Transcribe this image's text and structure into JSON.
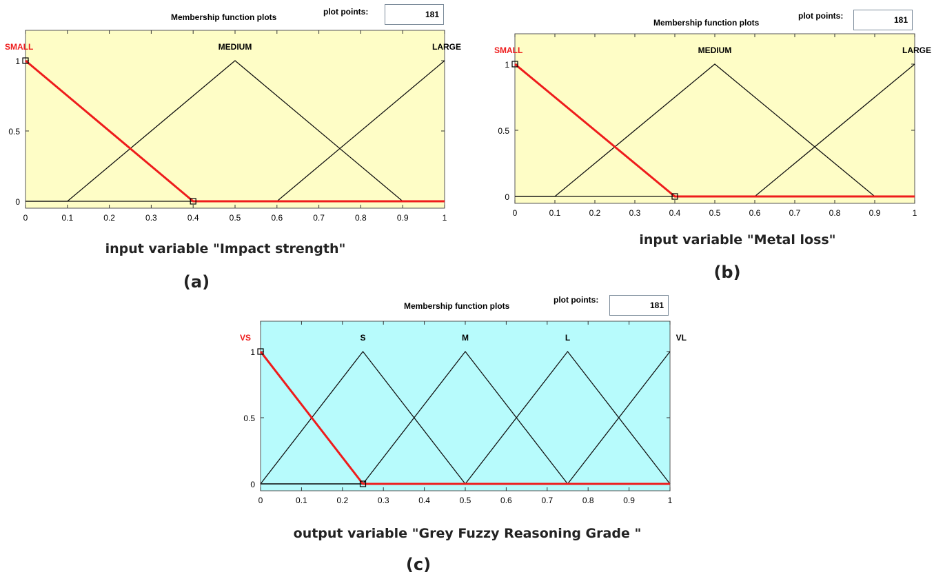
{
  "chart_data": [
    {
      "type": "line",
      "header": "Membership function plots",
      "plot_points_label": "plot points:",
      "plot_points_value": "181",
      "xlabel": "input variable \"Impact strength\"",
      "panel_label": "(a)",
      "background": "#fefdc6",
      "highlight_color": "#ee1c1c",
      "xlim": [
        0,
        1
      ],
      "ylim": [
        0,
        1
      ],
      "xticks": [
        "0",
        "0.1",
        "0.2",
        "0.3",
        "0.4",
        "0.5",
        "0.6",
        "0.7",
        "0.8",
        "0.9",
        "1"
      ],
      "yticks": [
        "0",
        "0.5",
        "1"
      ],
      "series": [
        {
          "name": "SMALL",
          "highlighted": true,
          "points": [
            [
              0,
              1
            ],
            [
              0.4,
              0
            ],
            [
              1,
              0
            ]
          ]
        },
        {
          "name": "MEDIUM",
          "highlighted": false,
          "points": [
            [
              0,
              0
            ],
            [
              0.1,
              0
            ],
            [
              0.5,
              1
            ],
            [
              0.9,
              0
            ],
            [
              1,
              0
            ]
          ]
        },
        {
          "name": "LARGE",
          "highlighted": false,
          "points": [
            [
              0,
              0
            ],
            [
              0.6,
              0
            ],
            [
              1,
              1
            ]
          ]
        }
      ]
    },
    {
      "type": "line",
      "header": "Membership function plots",
      "plot_points_label": "plot points:",
      "plot_points_value": "181",
      "xlabel": "input variable \"Metal loss\"",
      "panel_label": "(b)",
      "background": "#fefdc6",
      "highlight_color": "#ee1c1c",
      "xlim": [
        0,
        1
      ],
      "ylim": [
        0,
        1
      ],
      "xticks": [
        "0",
        "0.1",
        "0.2",
        "0.3",
        "0.4",
        "0.5",
        "0.6",
        "0.7",
        "0.8",
        "0.9",
        "1"
      ],
      "yticks": [
        "0",
        "0.5",
        "1"
      ],
      "series": [
        {
          "name": "SMALL",
          "highlighted": true,
          "points": [
            [
              0,
              1
            ],
            [
              0.4,
              0
            ],
            [
              1,
              0
            ]
          ]
        },
        {
          "name": "MEDIUM",
          "highlighted": false,
          "points": [
            [
              0,
              0
            ],
            [
              0.1,
              0
            ],
            [
              0.5,
              1
            ],
            [
              0.9,
              0
            ],
            [
              1,
              0
            ]
          ]
        },
        {
          "name": "LARGE",
          "highlighted": false,
          "points": [
            [
              0,
              0
            ],
            [
              0.6,
              0
            ],
            [
              1,
              1
            ]
          ]
        }
      ]
    },
    {
      "type": "line",
      "header": "Membership function plots",
      "plot_points_label": "plot points:",
      "plot_points_value": "181",
      "xlabel": "output variable \"Grey Fuzzy Reasoning Grade \"",
      "panel_label": "(c)",
      "background": "#b7fbfc",
      "highlight_color": "#ee1c1c",
      "xlim": [
        0,
        1
      ],
      "ylim": [
        0,
        1
      ],
      "xticks": [
        "0",
        "0.1",
        "0.2",
        "0.3",
        "0.4",
        "0.5",
        "0.6",
        "0.7",
        "0.8",
        "0.9",
        "1"
      ],
      "yticks": [
        "0",
        "0.5",
        "1"
      ],
      "series": [
        {
          "name": "VS",
          "highlighted": true,
          "points": [
            [
              0,
              1
            ],
            [
              0.25,
              0
            ],
            [
              1,
              0
            ]
          ]
        },
        {
          "name": "S",
          "highlighted": false,
          "points": [
            [
              0,
              0
            ],
            [
              0.25,
              1
            ],
            [
              0.5,
              0
            ],
            [
              1,
              0
            ]
          ]
        },
        {
          "name": "M",
          "highlighted": false,
          "points": [
            [
              0,
              0
            ],
            [
              0.25,
              0
            ],
            [
              0.5,
              1
            ],
            [
              0.75,
              0
            ],
            [
              1,
              0
            ]
          ]
        },
        {
          "name": "L",
          "highlighted": false,
          "points": [
            [
              0,
              0
            ],
            [
              0.5,
              0
            ],
            [
              0.75,
              1
            ],
            [
              1,
              0
            ]
          ]
        },
        {
          "name": "VL",
          "highlighted": false,
          "points": [
            [
              0,
              0
            ],
            [
              0.75,
              0
            ],
            [
              1,
              1
            ]
          ]
        }
      ]
    }
  ]
}
